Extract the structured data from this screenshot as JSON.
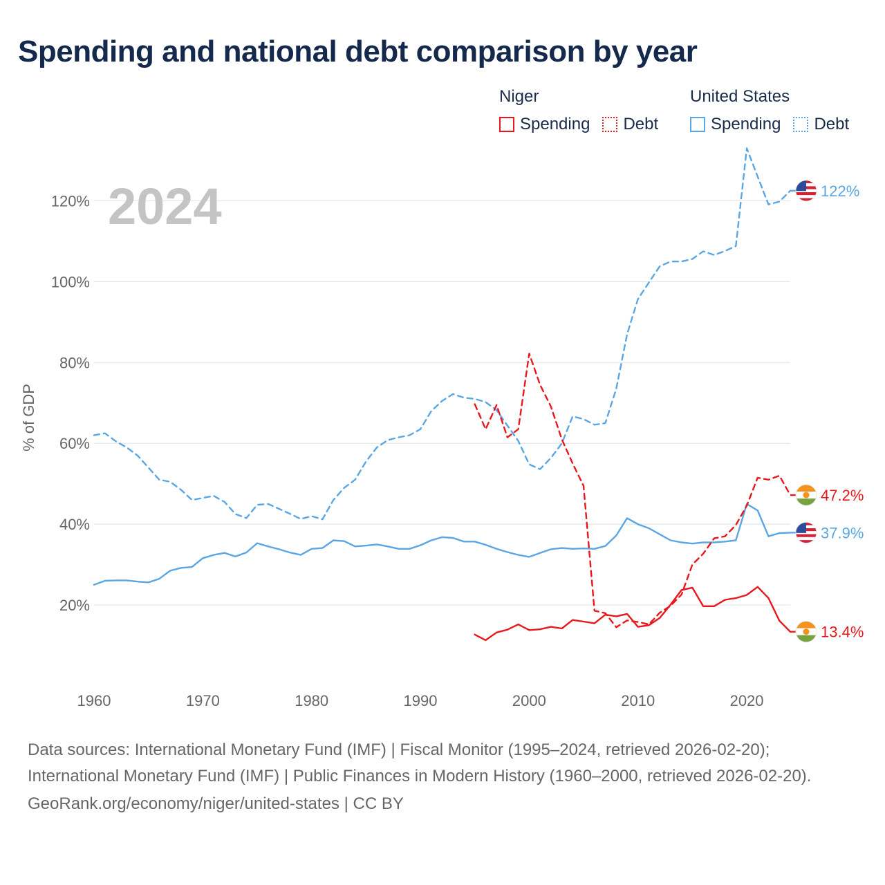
{
  "title": "Spending and national debt comparison by year",
  "year_label": "2024",
  "legend": [
    {
      "group": "Niger",
      "items": [
        {
          "label": "Spending",
          "style": "solid",
          "color": "#e8171b"
        },
        {
          "label": "Debt",
          "style": "dotted",
          "color": "#e8171b"
        }
      ]
    },
    {
      "group": "United States",
      "items": [
        {
          "label": "Spending",
          "style": "solid",
          "color": "#5aa6e4"
        },
        {
          "label": "Debt",
          "style": "dotted",
          "color": "#5aa6e4"
        }
      ]
    }
  ],
  "chart_data": {
    "type": "line",
    "ylabel": "% of GDP",
    "xlabel": "",
    "xlim": [
      1960,
      2024
    ],
    "ylim": [
      0,
      130
    ],
    "x_ticks": [
      {
        "value": 1960,
        "label": "1960"
      },
      {
        "value": 1970,
        "label": "1970"
      },
      {
        "value": 1980,
        "label": "1980"
      },
      {
        "value": 1990,
        "label": "1990"
      },
      {
        "value": 2000,
        "label": "2000"
      },
      {
        "value": 2010,
        "label": "2010"
      },
      {
        "value": 2020,
        "label": "2020"
      }
    ],
    "y_ticks": [
      {
        "value": 20,
        "label": "20%"
      },
      {
        "value": 40,
        "label": "40%"
      },
      {
        "value": 60,
        "label": "60%"
      },
      {
        "value": 80,
        "label": "80%"
      },
      {
        "value": 100,
        "label": "100%"
      },
      {
        "value": 120,
        "label": "120%"
      }
    ],
    "series": [
      {
        "name": "United States Debt",
        "country": "United States",
        "measure": "Debt",
        "color": "#5aa6e4",
        "dashed": true,
        "flag": "us-flag-icon",
        "end_label": "122%",
        "x": [
          1960,
          1961,
          1962,
          1963,
          1964,
          1965,
          1966,
          1967,
          1968,
          1969,
          1970,
          1971,
          1972,
          1973,
          1974,
          1975,
          1976,
          1977,
          1978,
          1979,
          1980,
          1981,
          1982,
          1983,
          1984,
          1985,
          1986,
          1987,
          1988,
          1989,
          1990,
          1991,
          1992,
          1993,
          1994,
          1995,
          1996,
          1997,
          1998,
          1999,
          2000,
          2001,
          2002,
          2003,
          2004,
          2005,
          2006,
          2007,
          2008,
          2009,
          2010,
          2011,
          2012,
          2013,
          2014,
          2015,
          2016,
          2017,
          2018,
          2019,
          2020,
          2021,
          2022,
          2023,
          2024
        ],
        "y": [
          62,
          62.5,
          60.5,
          59,
          57,
          54,
          51,
          50.5,
          48.5,
          46,
          46.5,
          47,
          45.5,
          42.5,
          41.5,
          44.8,
          45,
          43.8,
          42.6,
          41.3,
          42,
          41.2,
          46,
          49,
          51,
          55.5,
          59,
          60.8,
          61.5,
          62,
          63.5,
          68,
          70.5,
          72.2,
          71.3,
          71,
          70.2,
          68.2,
          64.4,
          60.6,
          54.8,
          53.6,
          56.4,
          60,
          66.7,
          66,
          64.6,
          65,
          73.5,
          87,
          95.7,
          99.8,
          103.8,
          105,
          105,
          105.6,
          107.5,
          106.6,
          107.6,
          108.8,
          133,
          126,
          119.1,
          119.8,
          122.5
        ]
      },
      {
        "name": "United States Spending",
        "country": "United States",
        "measure": "Spending",
        "color": "#5aa6e4",
        "dashed": false,
        "flag": "us-flag-icon",
        "end_label": "37.9%",
        "x": [
          1960,
          1961,
          1962,
          1963,
          1964,
          1965,
          1966,
          1967,
          1968,
          1969,
          1970,
          1971,
          1972,
          1973,
          1974,
          1975,
          1976,
          1977,
          1978,
          1979,
          1980,
          1981,
          1982,
          1983,
          1984,
          1985,
          1986,
          1987,
          1988,
          1989,
          1990,
          1991,
          1992,
          1993,
          1994,
          1995,
          1996,
          1997,
          1998,
          1999,
          2000,
          2001,
          2002,
          2003,
          2004,
          2005,
          2006,
          2007,
          2008,
          2009,
          2010,
          2011,
          2012,
          2013,
          2014,
          2015,
          2016,
          2017,
          2018,
          2019,
          2020,
          2021,
          2022,
          2023,
          2024
        ],
        "y": [
          25,
          26,
          26.1,
          26.1,
          25.8,
          25.6,
          26.5,
          28.5,
          29.2,
          29.4,
          31.6,
          32.4,
          32.9,
          32,
          33,
          35.3,
          34.5,
          33.8,
          33,
          32.4,
          33.9,
          34.1,
          36,
          35.8,
          34.5,
          34.7,
          35,
          34.5,
          33.9,
          33.9,
          34.8,
          36,
          36.8,
          36.6,
          35.7,
          35.7,
          34.9,
          33.9,
          33.1,
          32.4,
          31.9,
          32.9,
          33.8,
          34.1,
          33.9,
          34,
          33.9,
          34.6,
          37.2,
          41.5,
          40,
          39,
          37.5,
          36,
          35.5,
          35.2,
          35.5,
          35.5,
          35.7,
          36,
          45,
          43.4,
          37,
          37.8,
          37.9
        ]
      },
      {
        "name": "Niger Debt",
        "country": "Niger",
        "measure": "Debt",
        "color": "#e8171b",
        "dashed": true,
        "flag": "niger-flag-icon",
        "end_label": "47.2%",
        "x": [
          1995,
          1996,
          1997,
          1998,
          1999,
          2000,
          2001,
          2002,
          2003,
          2004,
          2005,
          2006,
          2007,
          2008,
          2009,
          2010,
          2011,
          2012,
          2013,
          2014,
          2015,
          2016,
          2017,
          2018,
          2019,
          2020,
          2021,
          2022,
          2023,
          2024
        ],
        "y": [
          69.7,
          63.5,
          69.5,
          61.5,
          63.5,
          82.2,
          74.5,
          69.1,
          61,
          55,
          49.5,
          18.6,
          18,
          14.5,
          16.2,
          15.8,
          15.2,
          18.1,
          19.8,
          22.6,
          30,
          32.7,
          36.5,
          37,
          39.8,
          44.6,
          51.5,
          51,
          52,
          47.2
        ]
      },
      {
        "name": "Niger Spending",
        "country": "Niger",
        "measure": "Spending",
        "color": "#e8171b",
        "dashed": false,
        "flag": "niger-flag-icon",
        "end_label": "13.4%",
        "x": [
          1995,
          1996,
          1997,
          1998,
          1999,
          2000,
          2001,
          2002,
          2003,
          2004,
          2005,
          2006,
          2007,
          2008,
          2009,
          2010,
          2011,
          2012,
          2013,
          2014,
          2015,
          2016,
          2017,
          2018,
          2019,
          2020,
          2021,
          2022,
          2023,
          2024
        ],
        "y": [
          12.7,
          11.3,
          13.2,
          13.9,
          15.2,
          13.8,
          14,
          14.6,
          14.2,
          16.3,
          15.9,
          15.5,
          17.6,
          17.2,
          17.8,
          14.6,
          15,
          16.8,
          20.1,
          23.7,
          24.3,
          19.7,
          19.7,
          21.3,
          21.7,
          22.5,
          24.5,
          21.7,
          16.1,
          13.4
        ]
      }
    ]
  },
  "sources": {
    "text": "Data sources: International Monetary Fund (IMF) | Fiscal Monitor (1995–2024, retrieved 2026-02-20); International Monetary Fund (IMF) | Public Finances in Modern History (1960–2000, retrieved 2026-02-20).",
    "credit": "GeoRank.org/economy/niger/united-states | CC BY"
  }
}
